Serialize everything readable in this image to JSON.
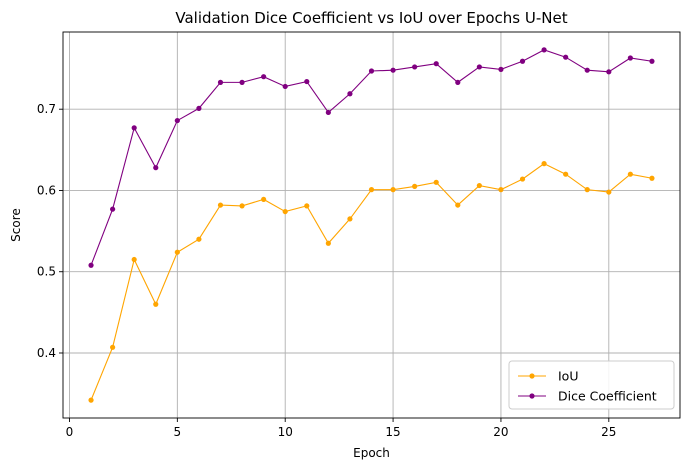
{
  "chart_data": {
    "type": "line",
    "title": "Validation Dice Coefficient vs IoU over Epochs U-Net",
    "xlabel": "Epoch",
    "ylabel": "Score",
    "xlim": [
      -0.3,
      28.3
    ],
    "ylim": [
      0.32,
      0.795
    ],
    "xticks": [
      0,
      5,
      10,
      15,
      20,
      25
    ],
    "xtick_labels": [
      "0",
      "5",
      "10",
      "15",
      "20",
      "25"
    ],
    "yticks": [
      0.4,
      0.5,
      0.6,
      0.7
    ],
    "ytick_labels": [
      "0.4",
      "0.5",
      "0.6",
      "0.7"
    ],
    "grid": true,
    "legend_position": "lower-right",
    "x": [
      1,
      2,
      3,
      4,
      5,
      6,
      7,
      8,
      9,
      10,
      11,
      12,
      13,
      14,
      15,
      16,
      17,
      18,
      19,
      20,
      21,
      22,
      23,
      24,
      25,
      26,
      27
    ],
    "series": [
      {
        "name": "IoU",
        "color": "#FFA500",
        "marker": "circle",
        "values": [
          0.342,
          0.407,
          0.515,
          0.46,
          0.524,
          0.54,
          0.582,
          0.581,
          0.589,
          0.574,
          0.581,
          0.535,
          0.565,
          0.601,
          0.601,
          0.605,
          0.61,
          0.582,
          0.606,
          0.601,
          0.614,
          0.633,
          0.62,
          0.601,
          0.598,
          0.62,
          0.615
        ]
      },
      {
        "name": "Dice Coefficient",
        "color": "#800080",
        "marker": "circle",
        "values": [
          0.508,
          0.577,
          0.677,
          0.628,
          0.686,
          0.701,
          0.733,
          0.733,
          0.74,
          0.728,
          0.734,
          0.696,
          0.719,
          0.747,
          0.748,
          0.752,
          0.756,
          0.733,
          0.752,
          0.749,
          0.759,
          0.773,
          0.764,
          0.748,
          0.746,
          0.763,
          0.759
        ]
      }
    ]
  }
}
